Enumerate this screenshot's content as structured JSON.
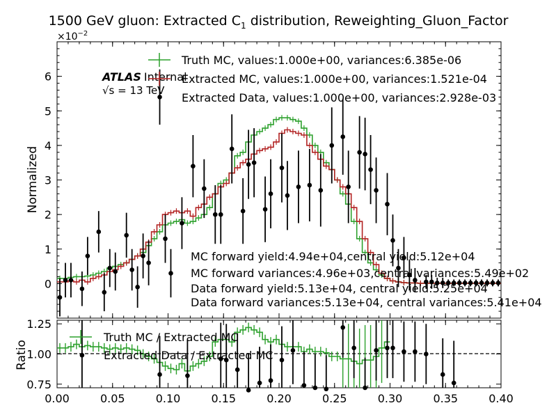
{
  "chart_data": [
    {
      "type": "line",
      "title": "1500 GeV gluon: Extracted C",
      "title_sub": "1",
      "title_suffix": " distribution, Reweighting_Gluon_Factor",
      "ylabel": "Normalized",
      "y_multiplier": "×10",
      "y_multiplier_exp": "−2",
      "xlim": [
        0.0,
        0.4
      ],
      "ylim": [
        -1.0,
        7.0
      ],
      "yticks": [
        0,
        1,
        2,
        3,
        4,
        5,
        6
      ],
      "grid": false,
      "legend_position": "top",
      "atlas_label": "ATLAS",
      "atlas_status": "Internal",
      "energy_label": "√s = 13 TeV",
      "legend": [
        {
          "label": "Truth MC, values:1.000e+00, variances:6.385e-06",
          "color": "#2ca02c"
        },
        {
          "label": "Extracted MC, values:1.000e+00, variances:1.521e-04",
          "color": "#b22222"
        },
        {
          "label": "Extracted Data, values:1.000e+00, variances:2.928e-03",
          "color": "#000000"
        }
      ],
      "annotations": [
        "MC forward yield:4.94e+04,central yield:5.12e+04",
        "MC forward variances:4.96e+03,central variances:5.49e+02",
        "Data forward yield:5.13e+04, central yield:5.25e+04",
        "Data forward variances:5.13e+04, central variances:5.41e+04"
      ],
      "bin_edges_start": 0.0,
      "bin_width": 0.005,
      "series": [
        {
          "name": "Truth MC",
          "color": "#2ca02c",
          "values": [
            0.15,
            0.15,
            0.18,
            0.2,
            0.2,
            0.22,
            0.25,
            0.3,
            0.35,
            0.45,
            0.5,
            0.55,
            0.6,
            0.7,
            0.8,
            0.9,
            1.1,
            1.3,
            1.5,
            1.7,
            1.75,
            1.8,
            1.85,
            1.75,
            1.8,
            1.9,
            2.0,
            2.2,
            2.6,
            2.9,
            3.0,
            3.2,
            3.7,
            3.8,
            4.1,
            4.3,
            4.4,
            4.5,
            4.6,
            4.75,
            4.8,
            4.8,
            4.75,
            4.7,
            4.5,
            4.3,
            4.0,
            3.8,
            3.5,
            3.3,
            3.0,
            2.6,
            2.3,
            1.8,
            1.3,
            0.9,
            0.6,
            0.4,
            0.25,
            0.15,
            0.08,
            0.05,
            0.03,
            0.02,
            0.02,
            0.01,
            0.01,
            0.01,
            0.01,
            0.01,
            0.01,
            0.01,
            0.01,
            0.01,
            0.01,
            0.01,
            0.01,
            0.01,
            0.01,
            0.01
          ]
        },
        {
          "name": "Extracted MC",
          "color": "#b22222",
          "values": [
            0.05,
            0.05,
            0.08,
            0.05,
            0.1,
            0.05,
            0.15,
            0.2,
            0.25,
            0.35,
            0.4,
            0.5,
            0.6,
            0.7,
            0.8,
            1.0,
            1.2,
            1.5,
            1.7,
            2.0,
            2.05,
            2.1,
            2.05,
            2.1,
            1.95,
            2.2,
            2.3,
            2.5,
            2.6,
            2.8,
            2.9,
            3.2,
            3.35,
            3.5,
            3.6,
            3.75,
            3.85,
            3.9,
            3.95,
            4.1,
            4.35,
            4.45,
            4.4,
            4.35,
            4.3,
            4.0,
            3.8,
            3.6,
            3.4,
            3.3,
            3.0,
            2.8,
            2.6,
            2.2,
            1.8,
            1.3,
            0.9,
            0.55,
            0.3,
            0.15,
            0.08,
            0.05,
            0.03,
            0.02,
            0.02,
            0.01,
            0.01,
            0.01,
            0.01,
            0.01,
            0.01,
            0.01,
            0.01,
            0.01,
            0.01,
            0.01,
            0.01,
            0.01,
            0.01,
            0.01
          ]
        }
      ],
      "data_points": {
        "name": "Extracted Data",
        "x": [
          0.0025,
          0.0075,
          0.0125,
          0.0225,
          0.0275,
          0.0375,
          0.0425,
          0.0475,
          0.0525,
          0.0625,
          0.0675,
          0.0725,
          0.0775,
          0.0825,
          0.0925,
          0.0975,
          0.1025,
          0.1125,
          0.1225,
          0.1325,
          0.1425,
          0.1475,
          0.1575,
          0.1675,
          0.1725,
          0.1775,
          0.1875,
          0.1925,
          0.2025,
          0.2075,
          0.2175,
          0.2275,
          0.2375,
          0.2475,
          0.2575,
          0.2625,
          0.2725,
          0.2775,
          0.2825,
          0.2875,
          0.2975,
          0.3025,
          0.3075,
          0.3125,
          0.3175,
          0.3225,
          0.3325,
          0.3375,
          0.3425,
          0.3475,
          0.3525,
          0.3575,
          0.3625,
          0.3675,
          0.3725,
          0.3775,
          0.3825,
          0.3875,
          0.3925,
          0.3975
        ],
        "y": [
          -0.4,
          0.1,
          0.1,
          -0.15,
          0.8,
          1.5,
          -0.25,
          0.45,
          0.35,
          1.4,
          0.4,
          -0.1,
          0.8,
          0.6,
          5.4,
          1.3,
          0.3,
          1.75,
          3.4,
          2.75,
          2.0,
          2.0,
          3.9,
          2.1,
          3.45,
          3.5,
          2.15,
          2.6,
          3.35,
          2.55,
          2.8,
          2.85,
          2.7,
          4.0,
          4.25,
          2.8,
          3.8,
          3.75,
          3.3,
          2.7,
          2.3,
          1.25,
          0.45,
          0.75,
          0.25,
          0.1,
          0.05,
          0.05,
          0.02,
          0.02,
          0.02,
          0.02,
          0.02,
          0.02,
          0.02,
          0.02,
          0.02,
          0.02,
          0.02,
          0.02
        ],
        "err": [
          0.55,
          0.5,
          0.5,
          0.5,
          0.55,
          0.6,
          0.55,
          0.55,
          0.55,
          0.65,
          0.6,
          0.6,
          0.65,
          0.65,
          0.8,
          0.7,
          0.7,
          0.75,
          0.9,
          0.85,
          0.85,
          0.85,
          1.0,
          0.95,
          1.0,
          1.0,
          0.95,
          1.0,
          1.0,
          1.0,
          1.05,
          1.05,
          1.05,
          1.1,
          1.1,
          1.05,
          1.05,
          1.05,
          1.0,
          0.95,
          0.9,
          0.75,
          0.55,
          0.6,
          0.45,
          0.35,
          0.2,
          0.2,
          0.15,
          0.15,
          0.1,
          0.1,
          0.1,
          0.1,
          0.1,
          0.1,
          0.1,
          0.1,
          0.1,
          0.1
        ],
        "color": "#000000"
      }
    },
    {
      "type": "line",
      "xlabel": "",
      "ylabel": "Ratio",
      "xlim": [
        0.0,
        0.4
      ],
      "ylim": [
        0.72,
        1.28
      ],
      "yticks": [
        "0.75",
        "1.00",
        "1.25"
      ],
      "xticks": [
        "0.00",
        "0.05",
        "0.10",
        "0.15",
        "0.20",
        "0.25",
        "0.30",
        "0.35",
        "0.40"
      ],
      "reference_line": 1.0,
      "legend": [
        {
          "label": "Truth MC / Extracted MC",
          "color": "#2ca02c"
        },
        {
          "label": "Extracted Data / Extracted MC",
          "color": "#000000"
        }
      ],
      "series": [
        {
          "name": "Truth MC / Extracted MC",
          "color": "#2ca02c",
          "values": [
            1.05,
            1.05,
            1.06,
            1.08,
            1.06,
            1.07,
            1.06,
            1.06,
            1.05,
            1.04,
            1.05,
            1.04,
            1.05,
            1.04,
            1.03,
            1.0,
            0.98,
            0.96,
            0.93,
            0.9,
            0.88,
            0.87,
            0.92,
            0.86,
            0.9,
            0.92,
            0.94,
            0.98,
            1.1,
            1.12,
            1.12,
            1.1,
            1.18,
            1.2,
            1.22,
            1.2,
            1.18,
            1.12,
            1.1,
            1.12,
            1.08,
            1.06,
            1.06,
            1.06,
            1.02,
            1.04,
            1.02,
            1.02,
            1.01,
            0.98,
            0.98,
            0.96,
            0.96,
            0.94,
            0.92,
            0.95,
            0.95,
            0.98,
            1.05,
            1.1
          ]
        }
      ],
      "data_points": {
        "name": "Extracted Data / Extracted MC",
        "x": [
          0.0225,
          0.0925,
          0.1175,
          0.1475,
          0.1525,
          0.1625,
          0.1725,
          0.1825,
          0.1925,
          0.2025,
          0.2125,
          0.2225,
          0.2325,
          0.2425,
          0.2575,
          0.2675,
          0.2775,
          0.2875,
          0.2975,
          0.3025,
          0.3125,
          0.3225,
          0.3325,
          0.3475,
          0.3575
        ],
        "y": [
          0.99,
          0.83,
          0.82,
          0.96,
          0.95,
          0.87,
          0.7,
          0.76,
          0.78,
          0.95,
          1.03,
          0.74,
          0.72,
          0.71,
          1.22,
          1.05,
          0.72,
          1.03,
          1.05,
          1.05,
          1.02,
          1.02,
          1.0,
          0.83,
          0.76
        ],
        "err": [
          0.35,
          0.32,
          0.3,
          0.3,
          0.3,
          0.3,
          0.3,
          0.3,
          0.3,
          0.28,
          0.28,
          0.28,
          0.28,
          0.28,
          0.25,
          0.25,
          0.25,
          0.25,
          0.25,
          0.25,
          0.25,
          0.25,
          0.25,
          0.3,
          0.35
        ],
        "color": "#000000"
      }
    }
  ]
}
